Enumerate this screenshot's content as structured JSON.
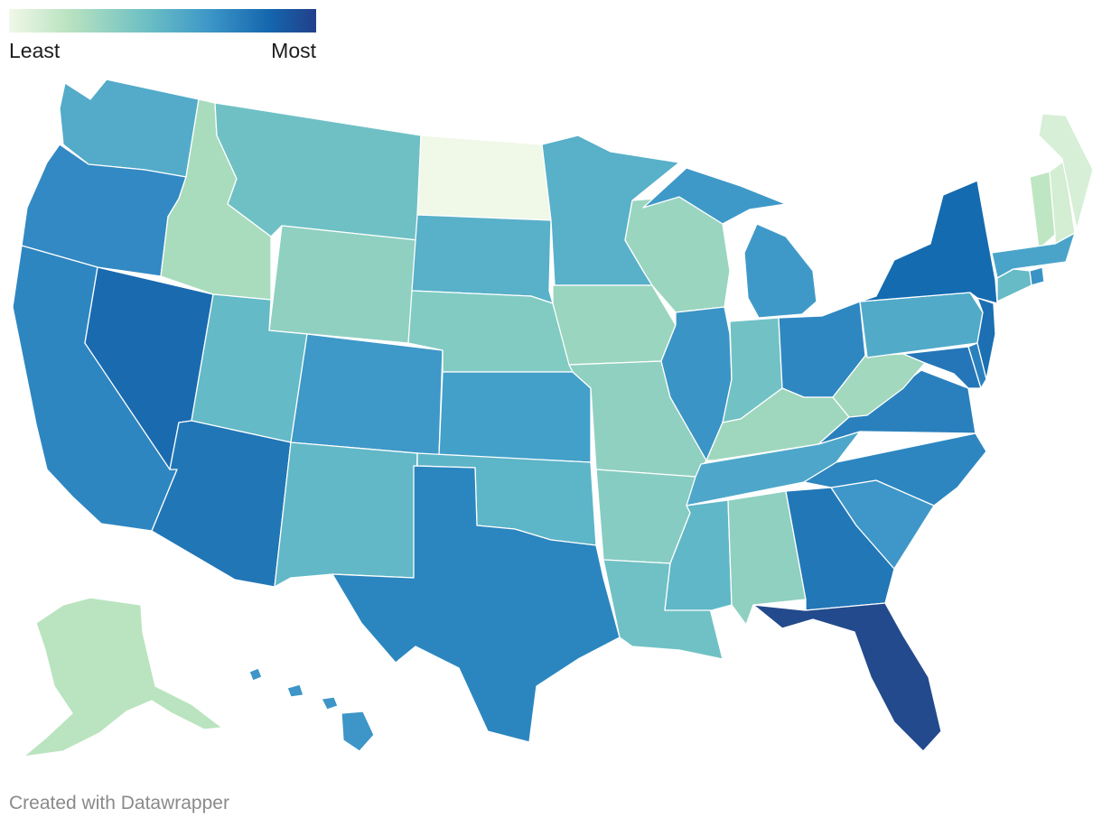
{
  "legend": {
    "min_label": "Least",
    "max_label": "Most",
    "gradient": [
      "#f0f8e8",
      "#b8e2c0",
      "#6cbfc4",
      "#3d97c8",
      "#1466ad",
      "#233f8a"
    ]
  },
  "credit": "Created with Datawrapper",
  "chart_data": {
    "type": "choropleth",
    "scale": "Least to Most",
    "states": [
      {
        "id": "ND",
        "color": "#f0f8e8"
      },
      {
        "id": "ME",
        "color": "#d6efd6"
      },
      {
        "id": "NH",
        "color": "#d3eed3"
      },
      {
        "id": "VT",
        "color": "#bfe6c2"
      },
      {
        "id": "AK",
        "color": "#bae4bf"
      },
      {
        "id": "ID",
        "color": "#a8dcbc"
      },
      {
        "id": "IA",
        "color": "#9ad5bf"
      },
      {
        "id": "WI",
        "color": "#9ad5bf"
      },
      {
        "id": "WV",
        "color": "#a2d8bd"
      },
      {
        "id": "KY",
        "color": "#9fd7be"
      },
      {
        "id": "WY",
        "color": "#8fd0c0"
      },
      {
        "id": "AL",
        "color": "#8fd0c0"
      },
      {
        "id": "NE",
        "color": "#82cbc2"
      },
      {
        "id": "MO",
        "color": "#90d0c0"
      },
      {
        "id": "AR",
        "color": "#86ccc2"
      },
      {
        "id": "MT",
        "color": "#6fc0c5"
      },
      {
        "id": "IN",
        "color": "#72c2c5"
      },
      {
        "id": "LA",
        "color": "#70c1c5"
      },
      {
        "id": "UT",
        "color": "#64bac7"
      },
      {
        "id": "NM",
        "color": "#62b8c7"
      },
      {
        "id": "SD",
        "color": "#58b0c9"
      },
      {
        "id": "MN",
        "color": "#58b0c9"
      },
      {
        "id": "WA",
        "color": "#53abc9"
      },
      {
        "id": "OK",
        "color": "#5db5c8"
      },
      {
        "id": "MS",
        "color": "#60b7c7"
      },
      {
        "id": "PA",
        "color": "#52aac9"
      },
      {
        "id": "CT",
        "color": "#66bbc6"
      },
      {
        "id": "TN",
        "color": "#4ea7ca"
      },
      {
        "id": "MA",
        "color": "#4aa4ca"
      },
      {
        "id": "CO",
        "color": "#3e98c8"
      },
      {
        "id": "KS",
        "color": "#42a0c9"
      },
      {
        "id": "MI",
        "color": "#3f99c8"
      },
      {
        "id": "IL",
        "color": "#3b94c6"
      },
      {
        "id": "SC",
        "color": "#3e97c8"
      },
      {
        "id": "HI",
        "color": "#3d96c7"
      },
      {
        "id": "RI",
        "color": "#3a93c6"
      },
      {
        "id": "OR",
        "color": "#3289c3"
      },
      {
        "id": "CA",
        "color": "#2e86c1"
      },
      {
        "id": "TX",
        "color": "#2b86bf"
      },
      {
        "id": "OH",
        "color": "#2f87c1"
      },
      {
        "id": "NC",
        "color": "#2d86c0"
      },
      {
        "id": "VA",
        "color": "#2a80bd"
      },
      {
        "id": "DE",
        "color": "#2a80bd"
      },
      {
        "id": "MD",
        "color": "#2576b8"
      },
      {
        "id": "GA",
        "color": "#2277b7"
      },
      {
        "id": "AZ",
        "color": "#2176b6"
      },
      {
        "id": "NJ",
        "color": "#1b6fb2"
      },
      {
        "id": "NV",
        "color": "#1a6aaf"
      },
      {
        "id": "NY",
        "color": "#156bb0"
      },
      {
        "id": "FL",
        "color": "#234a8c"
      }
    ]
  }
}
